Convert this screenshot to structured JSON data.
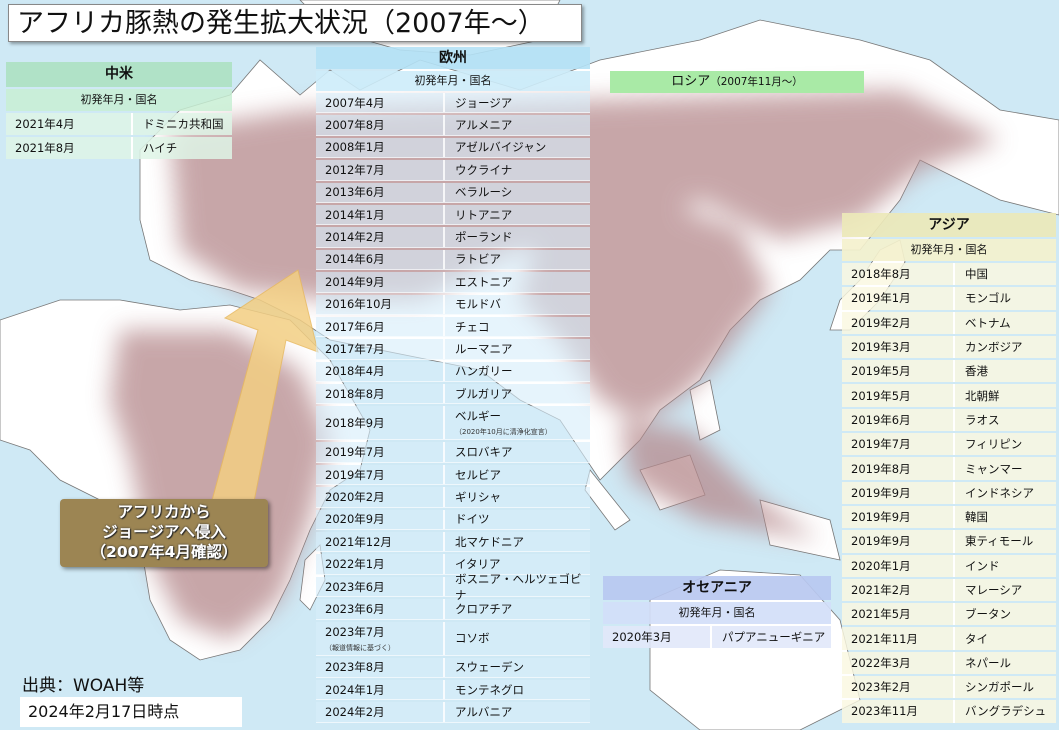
{
  "title": "アフリカ豚熱の発生拡大状況（2007年～）",
  "column_header": "初発年月・国名",
  "americas": {
    "region": "中米",
    "rows": [
      {
        "date": "2021年4月",
        "country": "ドミニカ共和国"
      },
      {
        "date": "2021年8月",
        "country": "ハイチ"
      }
    ]
  },
  "europe": {
    "region": "欧州",
    "rows": [
      {
        "date": "2007年4月",
        "country": "ジョージア"
      },
      {
        "date": "2007年8月",
        "country": "アルメニア"
      },
      {
        "date": "2008年1月",
        "country": "アゼルバイジャン"
      },
      {
        "date": "2012年7月",
        "country": "ウクライナ"
      },
      {
        "date": "2013年6月",
        "country": "ベラルーシ"
      },
      {
        "date": "2014年1月",
        "country": "リトアニア"
      },
      {
        "date": "2014年2月",
        "country": "ポーランド"
      },
      {
        "date": "2014年6月",
        "country": "ラトビア"
      },
      {
        "date": "2014年9月",
        "country": "エストニア"
      },
      {
        "date": "2016年10月",
        "country": "モルドバ"
      },
      {
        "date": "2017年6月",
        "country": "チェコ"
      },
      {
        "date": "2017年7月",
        "country": "ルーマニア"
      },
      {
        "date": "2018年4月",
        "country": "ハンガリー"
      },
      {
        "date": "2018年8月",
        "country": "ブルガリア"
      },
      {
        "date": "2018年9月",
        "country": "ベルギー",
        "note": "（2020年10月に清浄化宣言）"
      },
      {
        "date": "2019年7月",
        "country": "スロバキア"
      },
      {
        "date": "2019年7月",
        "country": "セルビア"
      },
      {
        "date": "2020年2月",
        "country": "ギリシャ"
      },
      {
        "date": "2020年9月",
        "country": "ドイツ"
      },
      {
        "date": "2021年12月",
        "country": "北マケドニア"
      },
      {
        "date": "2022年1月",
        "country": "イタリア"
      },
      {
        "date": "2023年6月",
        "country": "ボスニア・ヘルツェゴビナ"
      },
      {
        "date": "2023年6月",
        "country": "クロアチア"
      },
      {
        "date": "2023年7月",
        "country": "コソボ",
        "date_note": "（報道情報に基づく）"
      },
      {
        "date": "2023年8月",
        "country": "スウェーデン"
      },
      {
        "date": "2024年1月",
        "country": "モンテネグロ"
      },
      {
        "date": "2024年2月",
        "country": "アルバニア"
      }
    ]
  },
  "russia": {
    "label": "ロシア",
    "since": "（2007年11月～）"
  },
  "asia": {
    "region": "アジア",
    "rows": [
      {
        "date": "2018年8月",
        "country": "中国"
      },
      {
        "date": "2019年1月",
        "country": "モンゴル"
      },
      {
        "date": "2019年2月",
        "country": "ベトナム"
      },
      {
        "date": "2019年3月",
        "country": "カンボジア"
      },
      {
        "date": "2019年5月",
        "country": "香港"
      },
      {
        "date": "2019年5月",
        "country": "北朝鮮"
      },
      {
        "date": "2019年6月",
        "country": "ラオス"
      },
      {
        "date": "2019年7月",
        "country": "フィリピン"
      },
      {
        "date": "2019年8月",
        "country": "ミャンマー"
      },
      {
        "date": "2019年9月",
        "country": "インドネシア"
      },
      {
        "date": "2019年9月",
        "country": "韓国"
      },
      {
        "date": "2019年9月",
        "country": "東ティモール"
      },
      {
        "date": "2020年1月",
        "country": "インド"
      },
      {
        "date": "2021年2月",
        "country": "マレーシア"
      },
      {
        "date": "2021年5月",
        "country": "ブータン"
      },
      {
        "date": "2021年11月",
        "country": "タイ"
      },
      {
        "date": "2022年3月",
        "country": "ネパール"
      },
      {
        "date": "2023年2月",
        "country": "シンガポール"
      },
      {
        "date": "2023年11月",
        "country": "バングラデシュ"
      }
    ]
  },
  "oceania": {
    "region": "オセアニア",
    "rows": [
      {
        "date": "2020年3月",
        "country": "パプアニューギニア"
      }
    ]
  },
  "arrow_label": [
    "アフリカから",
    "ジョージアへ侵入",
    "（2007年4月確認）"
  ],
  "source": "出典：WOAH等",
  "as_of": "2024年2月17日時点",
  "colors": {
    "sea": "#cfe9f5",
    "land": "#ffffff",
    "affected": "#b5898c",
    "arrow": "#f3cf83",
    "arrow_label_bg": "#9c8553"
  }
}
